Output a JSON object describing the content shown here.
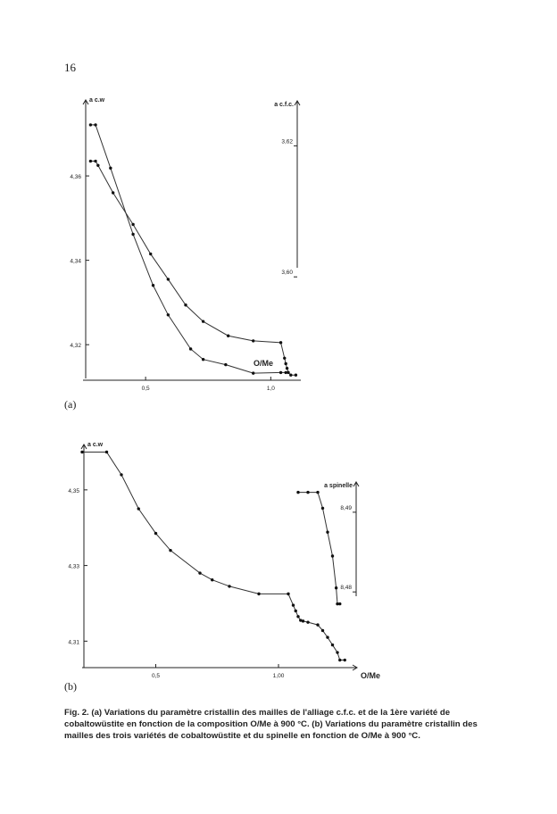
{
  "page": {
    "number": "16"
  },
  "chart_data": [
    {
      "type": "line",
      "panel": "(a)",
      "xlabel": "O/Me",
      "x_ticks": [
        "0,5",
        "1,0"
      ],
      "x_range": [
        0.25,
        1.12
      ],
      "left_axis": {
        "label": "a c.w",
        "ticks": [
          "4,36",
          "4,34",
          "4,32"
        ],
        "range": [
          4.312,
          4.378
        ]
      },
      "right_axis": {
        "label": "a c.f.c.",
        "ticks": [
          "3,62",
          "3,60"
        ],
        "range": [
          3.5845,
          3.627
        ]
      },
      "series": [
        {
          "axis": "right",
          "x": [
            0.28,
            0.3,
            0.36,
            0.45,
            0.53,
            0.59,
            0.68,
            0.73,
            0.82,
            0.93,
            1.04,
            1.06
          ],
          "y": [
            3.6232,
            3.6232,
            3.6166,
            3.6065,
            3.5987,
            3.5942,
            3.589,
            3.5874,
            3.5866,
            3.5853,
            3.5854,
            3.5854
          ]
        },
        {
          "axis": "left",
          "x": [
            0.28,
            0.3,
            0.31,
            0.37,
            0.45,
            0.52,
            0.59,
            0.66,
            0.73,
            0.83,
            0.93,
            1.04,
            1.055,
            1.06,
            1.065,
            1.07,
            1.08,
            1.1
          ],
          "y": [
            4.3635,
            4.3635,
            4.3625,
            4.356,
            4.3485,
            4.3415,
            4.3355,
            4.3294,
            4.3255,
            4.3221,
            4.3209,
            4.3205,
            4.3168,
            4.3155,
            4.3144,
            4.3134,
            4.3128,
            4.3128
          ]
        }
      ]
    },
    {
      "type": "line",
      "panel": "(b)",
      "xlabel": "O/Me",
      "x_ticks": [
        "0,5",
        "1,00"
      ],
      "x_range": [
        0.2,
        1.32
      ],
      "left_axis": {
        "label": "a c.w",
        "ticks": [
          "4,35",
          "4,33",
          "4,31"
        ],
        "range": [
          4.303,
          4.362
        ]
      },
      "right_axis": {
        "label": "a spinelle",
        "ticks": [
          "8,49",
          "8,48"
        ],
        "range": [
          8.4705,
          8.4985
        ]
      },
      "series": [
        {
          "axis": "left",
          "x": [
            0.2,
            0.3,
            0.36,
            0.43,
            0.5,
            0.56,
            0.68,
            0.73,
            0.8,
            0.92,
            1.04,
            1.06,
            1.07,
            1.08,
            1.09,
            1.1,
            1.12,
            1.16,
            1.18,
            1.2,
            1.22,
            1.24,
            1.25,
            1.27
          ],
          "y": [
            4.36,
            4.36,
            4.354,
            4.345,
            4.3385,
            4.334,
            4.328,
            4.3262,
            4.3245,
            4.3225,
            4.3225,
            4.3195,
            4.318,
            4.3165,
            4.3155,
            4.3153,
            4.315,
            4.3143,
            4.3128,
            4.311,
            4.309,
            4.307,
            4.305,
            4.305
          ]
        },
        {
          "axis": "right",
          "x": [
            1.08,
            1.12,
            1.16,
            1.18,
            1.2,
            1.22,
            1.235,
            1.24,
            1.25
          ],
          "y": [
            8.4925,
            8.4925,
            8.4925,
            8.4905,
            8.4875,
            8.4845,
            8.4805,
            8.4785,
            8.4785
          ]
        }
      ]
    }
  ],
  "panel_labels": {
    "a": "(a)",
    "b": "(b)"
  },
  "caption": "Fig. 2. (a) Variations du paramètre cristallin des mailles de l'alliage c.f.c. et de la 1ère variété de cobaltowüstite en fonction de la composition O/Me à 900 °C. (b) Variations du paramètre cristallin des mailles des trois variétés de cobaltowüstite et du spinelle en fonction de O/Me à 900 °C."
}
